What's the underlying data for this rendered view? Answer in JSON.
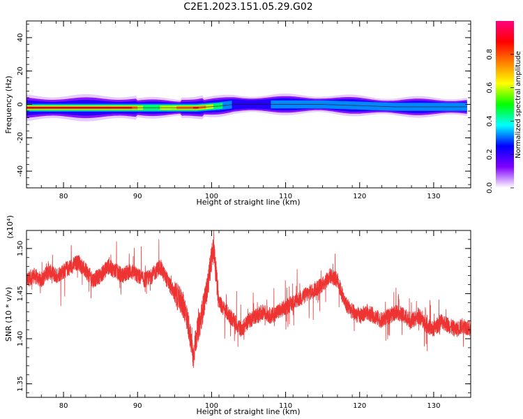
{
  "figure": {
    "title": "C2E1.2023.151.05.29.G02"
  },
  "chart_data": [
    {
      "type": "heatmap",
      "title": "C2E1.2023.151.05.29.G02",
      "xlabel": "Height of straight line (km)",
      "ylabel": "Frequency (Hz)",
      "xlim": [
        75,
        135
      ],
      "ylim": [
        -50,
        50
      ],
      "xticks": [
        "80",
        "90",
        "100",
        "110",
        "120",
        "130"
      ],
      "yticks": [
        "40",
        "20",
        "0",
        "-20",
        "-40"
      ],
      "colorbar": {
        "label": "Normalized spectral amplitude",
        "range": [
          0,
          1
        ],
        "ticks": [
          "0.0",
          "0.2",
          "0.4",
          "0.6",
          "0.8"
        ],
        "colors": [
          "#ffffff",
          "#8000ff",
          "#0000ff",
          "#00ffff",
          "#00ff00",
          "#ffff00",
          "#ff8000",
          "#ff0000",
          "#ff0080"
        ]
      },
      "bands": [
        {
          "x": [
            75,
            89,
            91.5,
            98,
            101,
            103,
            115,
            125,
            134.5
          ],
          "center_hz": [
            -2,
            -2,
            -2,
            -2,
            -1,
            0,
            0,
            -1.5,
            -1.5
          ],
          "peak_amplitude": [
            0.95,
            0.95,
            0.5,
            0.95,
            0.5,
            0.3,
            0.35,
            0.35,
            0.35
          ]
        }
      ]
    },
    {
      "type": "line",
      "xlabel": "Height of straight line (km)",
      "ylabel": "SNR (10 * v/v)",
      "y_multiplier": "(x10⁴)",
      "xlim": [
        75,
        135
      ],
      "ylim": [
        1.335,
        1.52
      ],
      "xticks": [
        "80",
        "90",
        "100",
        "110",
        "120",
        "130"
      ],
      "yticks": [
        "1.50",
        "1.45",
        "1.40",
        "1.35"
      ],
      "series": [
        {
          "color": "#ee3333",
          "x": [
            75,
            76,
            77,
            78,
            79,
            80,
            81,
            82,
            83,
            84,
            85,
            86,
            87,
            88,
            89,
            90,
            91,
            92,
            93,
            94,
            95,
            96,
            96.5,
            97,
            97.5,
            98,
            98.5,
            99,
            99.5,
            100,
            100.3,
            101,
            102,
            103,
            104,
            105,
            106,
            107,
            108,
            109,
            110,
            111,
            112,
            113,
            114,
            115,
            116,
            117,
            118,
            119,
            120,
            121,
            122,
            123,
            124,
            125,
            126,
            127,
            128,
            129,
            130,
            131,
            132,
            133,
            134,
            135
          ],
          "y": [
            1.465,
            1.47,
            1.465,
            1.475,
            1.47,
            1.475,
            1.48,
            1.485,
            1.475,
            1.465,
            1.47,
            1.48,
            1.475,
            1.47,
            1.475,
            1.47,
            1.465,
            1.47,
            1.48,
            1.465,
            1.45,
            1.44,
            1.43,
            1.41,
            1.38,
            1.405,
            1.42,
            1.44,
            1.46,
            1.49,
            1.5,
            1.44,
            1.43,
            1.42,
            1.41,
            1.42,
            1.425,
            1.43,
            1.425,
            1.43,
            1.435,
            1.44,
            1.445,
            1.45,
            1.455,
            1.46,
            1.47,
            1.465,
            1.44,
            1.43,
            1.425,
            1.43,
            1.425,
            1.42,
            1.425,
            1.43,
            1.425,
            1.42,
            1.425,
            1.415,
            1.41,
            1.42,
            1.415,
            1.41,
            1.415,
            1.41
          ]
        }
      ]
    }
  ]
}
